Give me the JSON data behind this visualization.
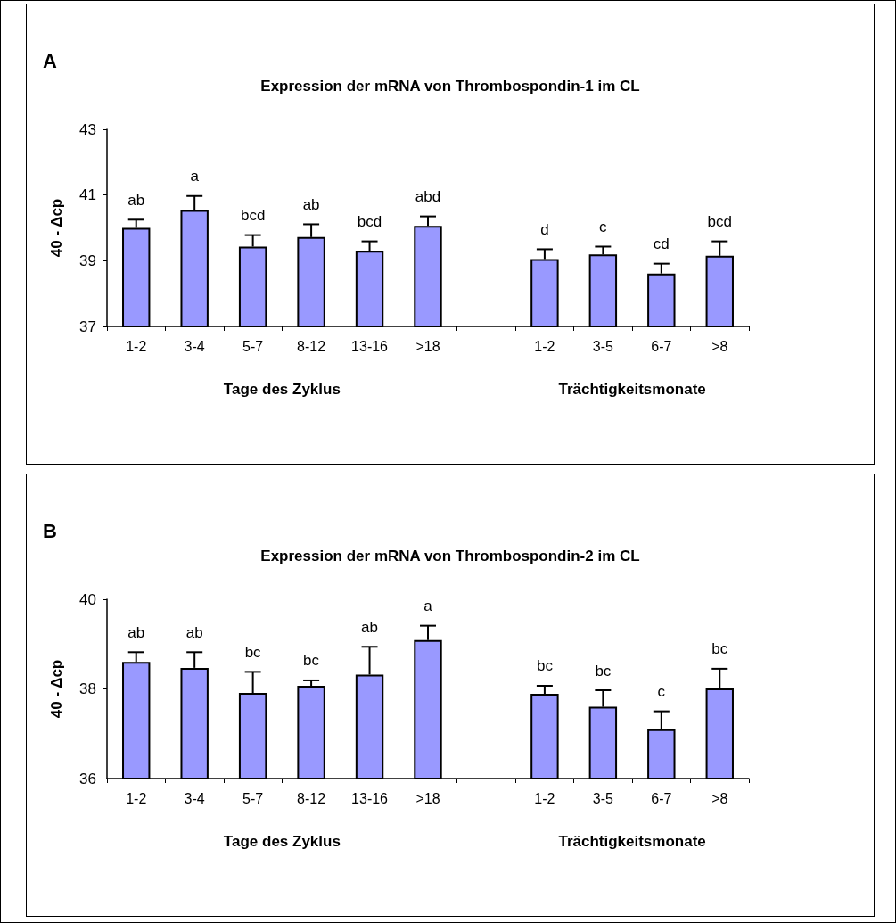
{
  "chart_data": [
    {
      "type": "bar",
      "title": "Expression der mRNA von Thrombospondin-1 im CL",
      "ylabel": "40 - Δcp",
      "xlabel": [
        "Tage des Zyklus",
        "Trächtigkeitsmonate"
      ],
      "annotations": [
        "A"
      ],
      "categories": [
        "1-2",
        "3-4",
        "5-7",
        "8-12",
        "13-16",
        ">18",
        null,
        "1-2",
        "3-5",
        "6-7",
        ">8"
      ],
      "values": [
        40.0,
        40.54,
        39.43,
        39.72,
        39.3,
        40.06,
        null,
        39.05,
        39.19,
        38.61,
        39.15
      ],
      "errors": [
        0.25,
        0.43,
        0.35,
        0.39,
        0.29,
        0.29,
        null,
        0.3,
        0.24,
        0.3,
        0.44
      ],
      "value_labels": [
        "ab",
        "a",
        "bcd",
        "ab",
        "bcd",
        "abd",
        null,
        "d",
        "c",
        "cd",
        "bcd"
      ],
      "color": "#9999ff",
      "ylim": [
        37,
        43
      ],
      "yticks": [
        37,
        39,
        41,
        43
      ]
    },
    {
      "type": "bar",
      "title": "Expression der mRNA von Thrombospondin-2 im CL",
      "ylabel": "40 - Δcp",
      "xlabel": [
        "Tage des Zyklus",
        "Trächtigkeitsmonate"
      ],
      "annotations": [
        "B"
      ],
      "categories": [
        "1-2",
        "3-4",
        "5-7",
        "8-12",
        "13-16",
        ">18",
        null,
        "1-2",
        "3-5",
        "6-7",
        ">8"
      ],
      "values": [
        38.6,
        38.47,
        37.91,
        38.07,
        38.32,
        39.09,
        null,
        37.89,
        37.6,
        37.1,
        38.01
      ],
      "errors": [
        0.22,
        0.35,
        0.47,
        0.12,
        0.62,
        0.32,
        null,
        0.18,
        0.37,
        0.4,
        0.44
      ],
      "value_labels": [
        "ab",
        "ab",
        "bc",
        "bc",
        "ab",
        "a",
        null,
        "bc",
        "bc",
        "c",
        "bc"
      ],
      "color": "#9999ff",
      "ylim": [
        36,
        40
      ],
      "yticks": [
        36,
        38,
        40
      ]
    }
  ]
}
